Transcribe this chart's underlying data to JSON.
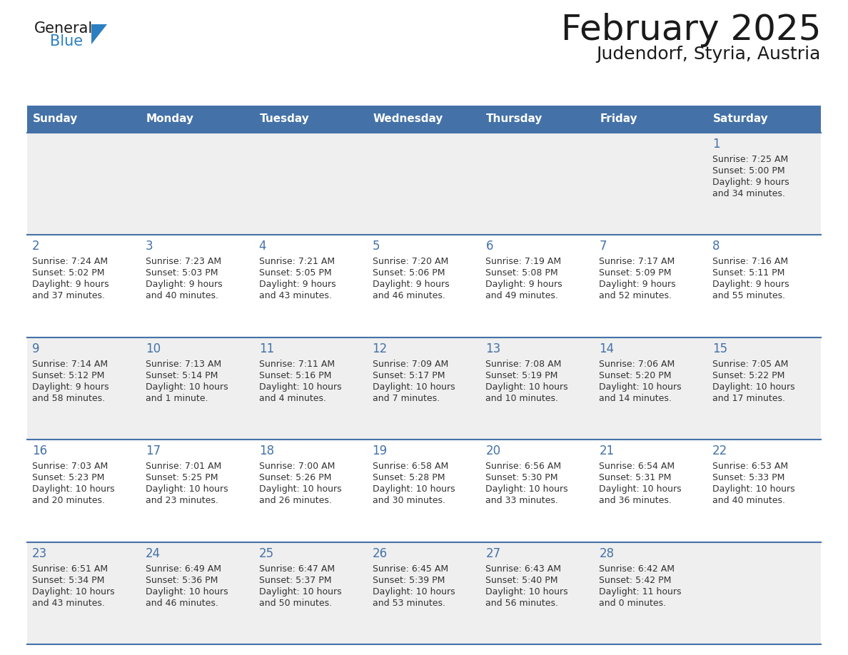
{
  "title": "February 2025",
  "subtitle": "Judendorf, Styria, Austria",
  "days_of_week": [
    "Sunday",
    "Monday",
    "Tuesday",
    "Wednesday",
    "Thursday",
    "Friday",
    "Saturday"
  ],
  "header_bg": "#4472a8",
  "header_text": "#ffffff",
  "row_bg_odd": "#efefef",
  "row_bg_even": "#ffffff",
  "border_color": "#4472a8",
  "day_number_color": "#4472a8",
  "text_color": "#333333",
  "calendar_data": [
    [
      null,
      null,
      null,
      null,
      null,
      null,
      {
        "day": "1",
        "sunrise": "7:25 AM",
        "sunset": "5:00 PM",
        "daylight": "9 hours",
        "daylight2": "and 34 minutes."
      }
    ],
    [
      {
        "day": "2",
        "sunrise": "7:24 AM",
        "sunset": "5:02 PM",
        "daylight": "9 hours",
        "daylight2": "and 37 minutes."
      },
      {
        "day": "3",
        "sunrise": "7:23 AM",
        "sunset": "5:03 PM",
        "daylight": "9 hours",
        "daylight2": "and 40 minutes."
      },
      {
        "day": "4",
        "sunrise": "7:21 AM",
        "sunset": "5:05 PM",
        "daylight": "9 hours",
        "daylight2": "and 43 minutes."
      },
      {
        "day": "5",
        "sunrise": "7:20 AM",
        "sunset": "5:06 PM",
        "daylight": "9 hours",
        "daylight2": "and 46 minutes."
      },
      {
        "day": "6",
        "sunrise": "7:19 AM",
        "sunset": "5:08 PM",
        "daylight": "9 hours",
        "daylight2": "and 49 minutes."
      },
      {
        "day": "7",
        "sunrise": "7:17 AM",
        "sunset": "5:09 PM",
        "daylight": "9 hours",
        "daylight2": "and 52 minutes."
      },
      {
        "day": "8",
        "sunrise": "7:16 AM",
        "sunset": "5:11 PM",
        "daylight": "9 hours",
        "daylight2": "and 55 minutes."
      }
    ],
    [
      {
        "day": "9",
        "sunrise": "7:14 AM",
        "sunset": "5:12 PM",
        "daylight": "9 hours",
        "daylight2": "and 58 minutes."
      },
      {
        "day": "10",
        "sunrise": "7:13 AM",
        "sunset": "5:14 PM",
        "daylight": "10 hours",
        "daylight2": "and 1 minute."
      },
      {
        "day": "11",
        "sunrise": "7:11 AM",
        "sunset": "5:16 PM",
        "daylight": "10 hours",
        "daylight2": "and 4 minutes."
      },
      {
        "day": "12",
        "sunrise": "7:09 AM",
        "sunset": "5:17 PM",
        "daylight": "10 hours",
        "daylight2": "and 7 minutes."
      },
      {
        "day": "13",
        "sunrise": "7:08 AM",
        "sunset": "5:19 PM",
        "daylight": "10 hours",
        "daylight2": "and 10 minutes."
      },
      {
        "day": "14",
        "sunrise": "7:06 AM",
        "sunset": "5:20 PM",
        "daylight": "10 hours",
        "daylight2": "and 14 minutes."
      },
      {
        "day": "15",
        "sunrise": "7:05 AM",
        "sunset": "5:22 PM",
        "daylight": "10 hours",
        "daylight2": "and 17 minutes."
      }
    ],
    [
      {
        "day": "16",
        "sunrise": "7:03 AM",
        "sunset": "5:23 PM",
        "daylight": "10 hours",
        "daylight2": "and 20 minutes."
      },
      {
        "day": "17",
        "sunrise": "7:01 AM",
        "sunset": "5:25 PM",
        "daylight": "10 hours",
        "daylight2": "and 23 minutes."
      },
      {
        "day": "18",
        "sunrise": "7:00 AM",
        "sunset": "5:26 PM",
        "daylight": "10 hours",
        "daylight2": "and 26 minutes."
      },
      {
        "day": "19",
        "sunrise": "6:58 AM",
        "sunset": "5:28 PM",
        "daylight": "10 hours",
        "daylight2": "and 30 minutes."
      },
      {
        "day": "20",
        "sunrise": "6:56 AM",
        "sunset": "5:30 PM",
        "daylight": "10 hours",
        "daylight2": "and 33 minutes."
      },
      {
        "day": "21",
        "sunrise": "6:54 AM",
        "sunset": "5:31 PM",
        "daylight": "10 hours",
        "daylight2": "and 36 minutes."
      },
      {
        "day": "22",
        "sunrise": "6:53 AM",
        "sunset": "5:33 PM",
        "daylight": "10 hours",
        "daylight2": "and 40 minutes."
      }
    ],
    [
      {
        "day": "23",
        "sunrise": "6:51 AM",
        "sunset": "5:34 PM",
        "daylight": "10 hours",
        "daylight2": "and 43 minutes."
      },
      {
        "day": "24",
        "sunrise": "6:49 AM",
        "sunset": "5:36 PM",
        "daylight": "10 hours",
        "daylight2": "and 46 minutes."
      },
      {
        "day": "25",
        "sunrise": "6:47 AM",
        "sunset": "5:37 PM",
        "daylight": "10 hours",
        "daylight2": "and 50 minutes."
      },
      {
        "day": "26",
        "sunrise": "6:45 AM",
        "sunset": "5:39 PM",
        "daylight": "10 hours",
        "daylight2": "and 53 minutes."
      },
      {
        "day": "27",
        "sunrise": "6:43 AM",
        "sunset": "5:40 PM",
        "daylight": "10 hours",
        "daylight2": "and 56 minutes."
      },
      {
        "day": "28",
        "sunrise": "6:42 AM",
        "sunset": "5:42 PM",
        "daylight": "11 hours",
        "daylight2": "and 0 minutes."
      },
      null
    ]
  ],
  "logo_general_color": "#1a1a1a",
  "logo_blue_color": "#2b7fc1",
  "logo_triangle_color": "#2b7fc1",
  "fig_width": 11.88,
  "fig_height": 9.18,
  "dpi": 100
}
